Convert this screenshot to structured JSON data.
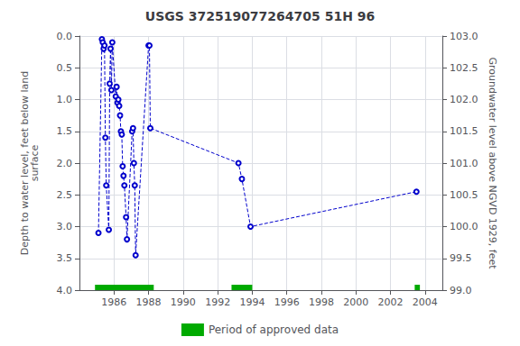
{
  "chart_data": {
    "type": "line",
    "title": "USGS 372519077264705 51H 96",
    "ylabel": "Depth to water level, feet below land\nsurface",
    "y2label": "Groundwater level above NGVD 1929, feet",
    "xlim": [
      1984.0,
      2005.0
    ],
    "ylim": [
      4.0,
      0.0
    ],
    "y2lim": [
      99.0,
      103.0
    ],
    "grid": true,
    "x": [
      1985.1,
      1985.3,
      1985.35,
      1985.4,
      1985.45,
      1985.5,
      1985.55,
      1985.7,
      1985.75,
      1985.8,
      1985.85,
      1985.9,
      1986.1,
      1986.15,
      1986.2,
      1986.25,
      1986.3,
      1986.35,
      1986.4,
      1986.45,
      1986.5,
      1986.55,
      1986.6,
      1986.7,
      1986.75,
      1987.05,
      1987.1,
      1987.15,
      1987.2,
      1987.25,
      1988.0,
      1988.05,
      1988.1,
      1993.2,
      1993.4,
      1993.9,
      2003.5
    ],
    "series": [
      {
        "color": "#0000cc",
        "line_style": "dashed",
        "marker": "circle",
        "values": [
          3.1,
          0.05,
          0.1,
          0.2,
          0.15,
          1.6,
          2.35,
          3.05,
          0.75,
          0.2,
          0.85,
          0.1,
          0.95,
          0.8,
          1.05,
          1.0,
          1.1,
          1.25,
          1.5,
          1.55,
          2.05,
          2.2,
          2.35,
          2.85,
          3.2,
          1.5,
          1.45,
          2.0,
          2.35,
          3.45,
          0.15,
          0.15,
          1.45,
          2.0,
          2.25,
          3.0,
          2.45
        ]
      }
    ],
    "approved_periods": {
      "name": "Period of approved data",
      "color": "#00aa00",
      "ranges": [
        [
          1984.9,
          1988.3
        ],
        [
          1992.8,
          1994.0
        ],
        [
          2003.4,
          2003.7
        ]
      ]
    },
    "legend": "bottom",
    "xticks": [
      1986,
      1988,
      1990,
      1992,
      1994,
      1996,
      1998,
      2000,
      2002,
      2004
    ],
    "yticks": [
      {
        "value": 0.0,
        "label": "0.0"
      },
      {
        "value": 0.5,
        "label": "0.5"
      },
      {
        "value": 1.0,
        "label": "1.0"
      },
      {
        "value": 1.5,
        "label": "1.5"
      },
      {
        "value": 2.0,
        "label": "2.0"
      },
      {
        "value": 2.5,
        "label": "2.5"
      },
      {
        "value": 3.0,
        "label": "3.0"
      },
      {
        "value": 3.5,
        "label": "3.5"
      },
      {
        "value": 4.0,
        "label": "4.0"
      }
    ],
    "y2ticks": [
      {
        "value": 99.0,
        "label": "99.0"
      },
      {
        "value": 99.5,
        "label": "99.5"
      },
      {
        "value": 100.0,
        "label": "100.0"
      },
      {
        "value": 100.5,
        "label": "100.5"
      },
      {
        "value": 101.0,
        "label": "101.0"
      },
      {
        "value": 101.5,
        "label": "101.5"
      },
      {
        "value": 102.0,
        "label": "102.0"
      },
      {
        "value": 102.5,
        "label": "102.5"
      },
      {
        "value": 103.0,
        "label": "103.0"
      }
    ]
  }
}
